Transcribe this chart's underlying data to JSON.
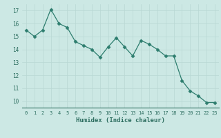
{
  "x": [
    0,
    1,
    2,
    3,
    4,
    5,
    6,
    7,
    8,
    9,
    10,
    11,
    12,
    13,
    14,
    15,
    16,
    17,
    18,
    19,
    20,
    21,
    22,
    23
  ],
  "y": [
    15.5,
    15.0,
    15.5,
    17.1,
    16.0,
    15.7,
    14.6,
    14.3,
    14.0,
    13.4,
    14.2,
    14.9,
    14.2,
    13.5,
    14.7,
    14.4,
    14.0,
    13.5,
    13.5,
    11.6,
    10.8,
    10.4,
    9.9,
    9.9
  ],
  "xlim": [
    -0.5,
    23.5
  ],
  "ylim": [
    9.5,
    17.5
  ],
  "yticks": [
    10,
    11,
    12,
    13,
    14,
    15,
    16,
    17
  ],
  "xticks": [
    0,
    1,
    2,
    3,
    4,
    5,
    6,
    7,
    8,
    9,
    10,
    11,
    12,
    13,
    14,
    15,
    16,
    17,
    18,
    19,
    20,
    21,
    22,
    23
  ],
  "xlabel": "Humidex (Indice chaleur)",
  "line_color": "#2d7d6e",
  "marker": "D",
  "marker_size": 2.5,
  "bg_color": "#cce8e4",
  "grid_color": "#b8d8d4",
  "font_color": "#2d6e60"
}
